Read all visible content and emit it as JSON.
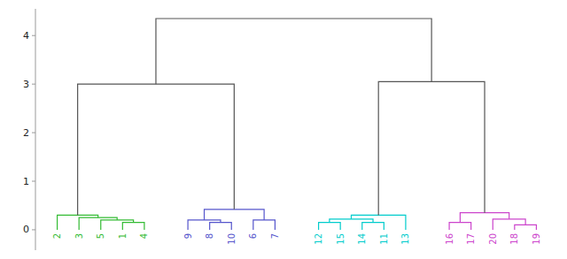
{
  "chart_data": {
    "type": "dendrogram",
    "categories": [
      "2",
      "3",
      "5",
      "1",
      "4",
      "9",
      "8",
      "10",
      "6",
      "7",
      "12",
      "15",
      "14",
      "11",
      "13",
      "16",
      "17",
      "20",
      "18",
      "19"
    ],
    "colors": [
      "#33bb33",
      "#33bb33",
      "#33bb33",
      "#33bb33",
      "#33bb33",
      "#5555cc",
      "#5555cc",
      "#5555cc",
      "#5555cc",
      "#5555cc",
      "#00cccc",
      "#00cccc",
      "#00cccc",
      "#00cccc",
      "#00cccc",
      "#cc44cc",
      "#cc44cc",
      "#cc44cc",
      "#cc44cc",
      "#cc44cc"
    ],
    "merges": [
      {
        "left": 3,
        "right": 4,
        "height": 0.15,
        "color": "#33bb33"
      },
      {
        "left": 2,
        "right": 20,
        "height": 0.2,
        "color": "#33bb33"
      },
      {
        "left": 1,
        "right": 21,
        "height": 0.25,
        "color": "#33bb33"
      },
      {
        "left": 0,
        "right": 22,
        "height": 0.3,
        "color": "#33bb33"
      },
      {
        "left": 6,
        "right": 7,
        "height": 0.15,
        "color": "#5555cc"
      },
      {
        "left": 5,
        "right": 24,
        "height": 0.2,
        "color": "#5555cc"
      },
      {
        "left": 8,
        "right": 9,
        "height": 0.2,
        "color": "#5555cc"
      },
      {
        "left": 25,
        "right": 26,
        "height": 0.42,
        "color": "#5555cc"
      },
      {
        "left": 10,
        "right": 11,
        "height": 0.15,
        "color": "#00cccc"
      },
      {
        "left": 12,
        "right": 13,
        "height": 0.15,
        "color": "#00cccc"
      },
      {
        "left": 28,
        "right": 29,
        "height": 0.22,
        "color": "#00cccc"
      },
      {
        "left": 30,
        "right": 14,
        "height": 0.3,
        "color": "#00cccc"
      },
      {
        "left": 15,
        "right": 16,
        "height": 0.15,
        "color": "#cc44cc"
      },
      {
        "left": 18,
        "right": 19,
        "height": 0.1,
        "color": "#cc44cc"
      },
      {
        "left": 17,
        "right": 33,
        "height": 0.22,
        "color": "#cc44cc"
      },
      {
        "left": 32,
        "right": 34,
        "height": 0.35,
        "color": "#cc44cc"
      },
      {
        "left": 23,
        "right": 27,
        "height": 3.0,
        "color": "#555555"
      },
      {
        "left": 31,
        "right": 35,
        "height": 3.05,
        "color": "#555555"
      },
      {
        "left": 36,
        "right": 37,
        "height": 4.35,
        "color": "#555555"
      }
    ],
    "ylim": [
      -0.42,
      4.55
    ],
    "yticks": [
      0,
      1,
      2,
      3,
      4
    ]
  }
}
